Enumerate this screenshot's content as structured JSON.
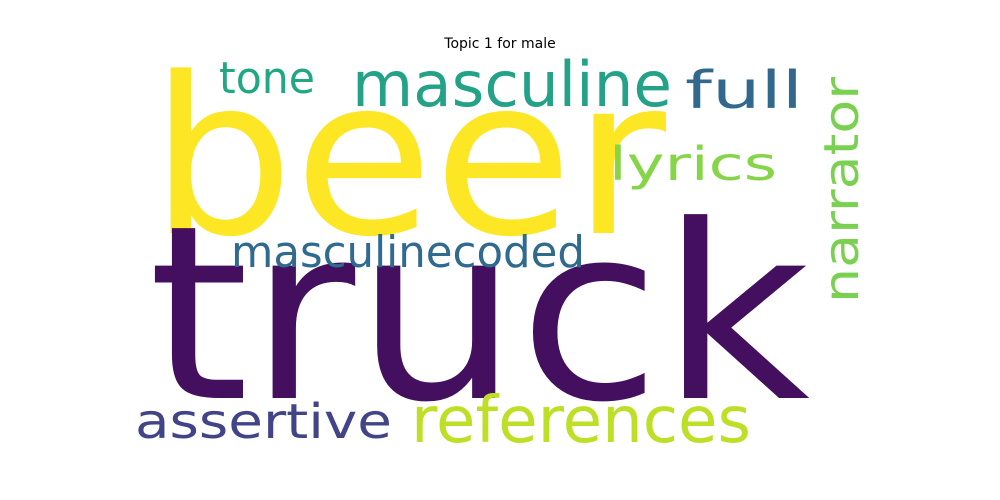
{
  "title": "Topic 1 for male",
  "words": [
    {
      "text": "truck",
      "color": "#440f5e"
    },
    {
      "text": "beer",
      "color": "#fde725"
    },
    {
      "text": "masculine",
      "color": "#23a287"
    },
    {
      "text": "references",
      "color": "#bddf26"
    },
    {
      "text": "narrator",
      "color": "#7ad151"
    },
    {
      "text": "masculinecoded",
      "color": "#306a8e"
    },
    {
      "text": "assertive",
      "color": "#414487"
    },
    {
      "text": "full",
      "color": "#31688e"
    },
    {
      "text": "lyrics",
      "color": "#86d549"
    },
    {
      "text": "tone",
      "color": "#22a785"
    }
  ]
}
